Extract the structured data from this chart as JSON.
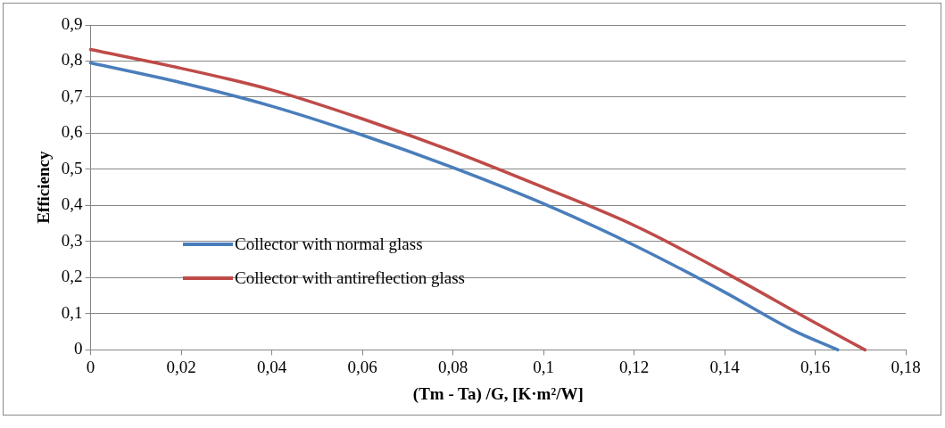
{
  "chart_data": {
    "type": "line",
    "xlabel": "(Tm - Ta) /G, [K·m²/W]",
    "ylabel": "Efficiency",
    "xlim": [
      0,
      0.18
    ],
    "xticks": [
      0,
      {
        "value": 0.02,
        "label": "0,02"
      },
      {
        "value": 0.04,
        "label": "0,04"
      },
      {
        "value": 0.06,
        "label": "0,06"
      },
      {
        "value": 0.08,
        "label": "0,08"
      },
      {
        "value": 0.1,
        "label": "0,1"
      },
      {
        "value": 0.12,
        "label": "0,12"
      },
      {
        "value": 0.14,
        "label": "0,14"
      },
      {
        "value": 0.16,
        "label": "0,16"
      },
      {
        "value": 0.18,
        "label": "0,18"
      }
    ],
    "ylim": [
      0,
      0.9
    ],
    "yticks": [
      0,
      {
        "value": 0.1,
        "label": "0,1"
      },
      {
        "value": 0.2,
        "label": "0,2"
      },
      {
        "value": 0.3,
        "label": "0,3"
      },
      {
        "value": 0.4,
        "label": "0,4"
      },
      {
        "value": 0.5,
        "label": "0,5"
      },
      {
        "value": 0.6,
        "label": "0,6"
      },
      {
        "value": 0.7,
        "label": "0,7"
      },
      {
        "value": 0.8,
        "label": "0,8"
      },
      {
        "value": 0.9,
        "label": "0,9"
      }
    ],
    "grid": "y",
    "legend": "left",
    "marker": "none",
    "line_style": "solid",
    "series": [
      {
        "name": "Collector with normal glass",
        "color": "#4a7ebb",
        "x": [
          0,
          0.02,
          0.04,
          0.06,
          0.08,
          0.1,
          0.12,
          0.14,
          0.155,
          0.165
        ],
        "values": [
          0.795,
          0.74,
          0.675,
          0.595,
          0.505,
          0.405,
          0.29,
          0.16,
          0.055,
          0
        ]
      },
      {
        "name": "Collector with antireflection glass",
        "color": "#be4b48",
        "x": [
          0,
          0.02,
          0.04,
          0.06,
          0.08,
          0.1,
          0.12,
          0.14,
          0.16,
          0.171
        ],
        "values": [
          0.832,
          0.78,
          0.72,
          0.64,
          0.55,
          0.45,
          0.345,
          0.215,
          0.075,
          0
        ]
      }
    ]
  }
}
